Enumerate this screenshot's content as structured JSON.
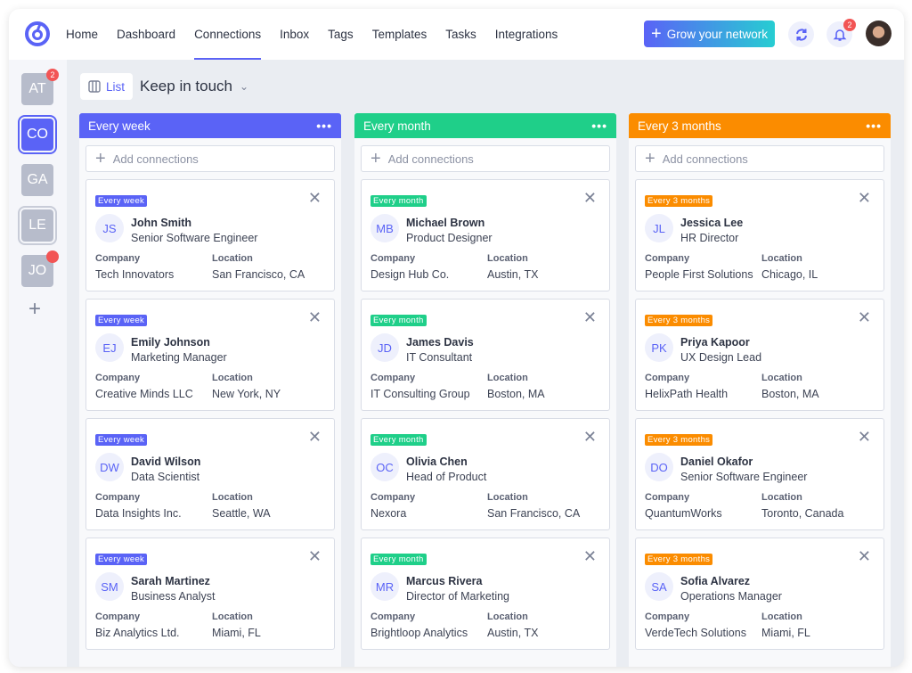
{
  "nav": {
    "items": [
      "Home",
      "Dashboard",
      "Connections",
      "Inbox",
      "Tags",
      "Templates",
      "Tasks",
      "Integrations"
    ],
    "active": "Connections"
  },
  "header": {
    "grow_label": "Grow your network",
    "notif_count": "2"
  },
  "sidebar": {
    "items": [
      {
        "label": "AT",
        "badge": "2"
      },
      {
        "label": "CO"
      },
      {
        "label": "GA"
      },
      {
        "label": "LE"
      },
      {
        "label": "JO",
        "dot": true
      }
    ]
  },
  "toolbar": {
    "view_label": "List",
    "board_title": "Keep in touch"
  },
  "labels": {
    "add": "Add connections",
    "company": "Company",
    "location": "Location"
  },
  "columns": [
    {
      "title": "Every week",
      "color": "#5a63f6",
      "cards": [
        {
          "initials": "JS",
          "name": "John Smith",
          "role": "Senior Software Engineer",
          "company": "Tech Innovators",
          "location": "San Francisco, CA"
        },
        {
          "initials": "EJ",
          "name": "Emily Johnson",
          "role": "Marketing Manager",
          "company": "Creative Minds LLC",
          "location": "New York, NY"
        },
        {
          "initials": "DW",
          "name": "David Wilson",
          "role": "Data Scientist",
          "company": "Data Insights Inc.",
          "location": "Seattle, WA"
        },
        {
          "initials": "SM",
          "name": "Sarah Martinez",
          "role": "Business Analyst",
          "company": "Biz Analytics Ltd.",
          "location": "Miami, FL"
        }
      ]
    },
    {
      "title": "Every month",
      "color": "#1fcf89",
      "cards": [
        {
          "initials": "MB",
          "name": "Michael Brown",
          "role": "Product Designer",
          "company": "Design Hub Co.",
          "location": "Austin, TX"
        },
        {
          "initials": "JD",
          "name": "James Davis",
          "role": "IT Consultant",
          "company": "IT Consulting Group",
          "location": "Boston, MA"
        },
        {
          "initials": "OC",
          "name": "Olivia Chen",
          "role": "Head of Product",
          "company": "Nexora",
          "location": "San Francisco, CA"
        },
        {
          "initials": "MR",
          "name": "Marcus Rivera",
          "role": "Director of Marketing",
          "company": "Brightloop Analytics",
          "location": "Austin, TX"
        }
      ]
    },
    {
      "title": "Every 3 months",
      "color": "#fb8c00",
      "cards": [
        {
          "initials": "JL",
          "name": "Jessica Lee",
          "role": "HR Director",
          "company": "People First Solutions",
          "location": "Chicago, IL"
        },
        {
          "initials": "PK",
          "name": "Priya Kapoor",
          "role": "UX Design Lead",
          "company": "HelixPath Health",
          "location": "Boston, MA"
        },
        {
          "initials": "DO",
          "name": "Daniel Okafor",
          "role": "Senior Software Engineer",
          "company": "QuantumWorks",
          "location": "Toronto, Canada"
        },
        {
          "initials": "SA",
          "name": "Sofia Alvarez",
          "role": "Operations Manager",
          "company": "VerdeTech Solutions",
          "location": "Miami, FL"
        }
      ]
    }
  ]
}
